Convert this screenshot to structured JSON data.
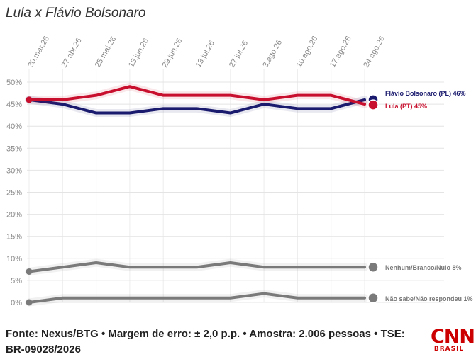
{
  "chart_data": {
    "type": "line",
    "title": "Lula x Flávio Bolsonaro",
    "x_ticks": [
      "30.mar.26",
      "27.abr.26",
      "25.mai.26",
      "15.jun.26",
      "29.jun.26",
      "13.jul.26",
      "27.jul.26",
      "3.ago.26",
      "10.ago.26",
      "17.ago.26",
      "24.ago.26"
    ],
    "y_ticks": [
      "0%",
      "5%",
      "10%",
      "15%",
      "20%",
      "25%",
      "30%",
      "35%",
      "40%",
      "45%",
      "50%"
    ],
    "ylim": [
      0,
      50
    ],
    "grid": true,
    "series": [
      {
        "name": "Lula (PT)",
        "color": "#c8102e",
        "values": [
          46,
          46,
          47,
          49,
          47,
          47,
          47,
          46,
          47,
          47,
          45
        ],
        "end_label": "Lula (PT) 45%"
      },
      {
        "name": "Flávio Bolsonaro (PL)",
        "color": "#1a1a6e",
        "values": [
          46,
          45,
          43,
          43,
          44,
          44,
          43,
          45,
          44,
          44,
          46
        ],
        "end_label": "Flávio Bolsonaro (PL) 46%"
      },
      {
        "name": "Nenhum/Branco/Nulo",
        "color": "#7a7a7a",
        "values": [
          7,
          8,
          9,
          8,
          8,
          8,
          9,
          8,
          8,
          8,
          8
        ],
        "end_label": "Nenhum/Branco/Nulo 8%"
      },
      {
        "name": "Não sabe/Não respondeu",
        "color": "#7a7a7a",
        "values": [
          0,
          1,
          1,
          1,
          1,
          1,
          1,
          2,
          1,
          1,
          1
        ],
        "end_label": "Não sabe/Não respondeu 1%"
      }
    ]
  },
  "footer": {
    "source": "Fonte: Nexus/BTG • Margem de erro: ± 2,0 p.p. • Amostra: 2.006 pessoas • TSE: BR-09028/2026"
  },
  "logo": {
    "top": "CNN",
    "bottom": "BRASIL",
    "color": "#cc0000"
  }
}
